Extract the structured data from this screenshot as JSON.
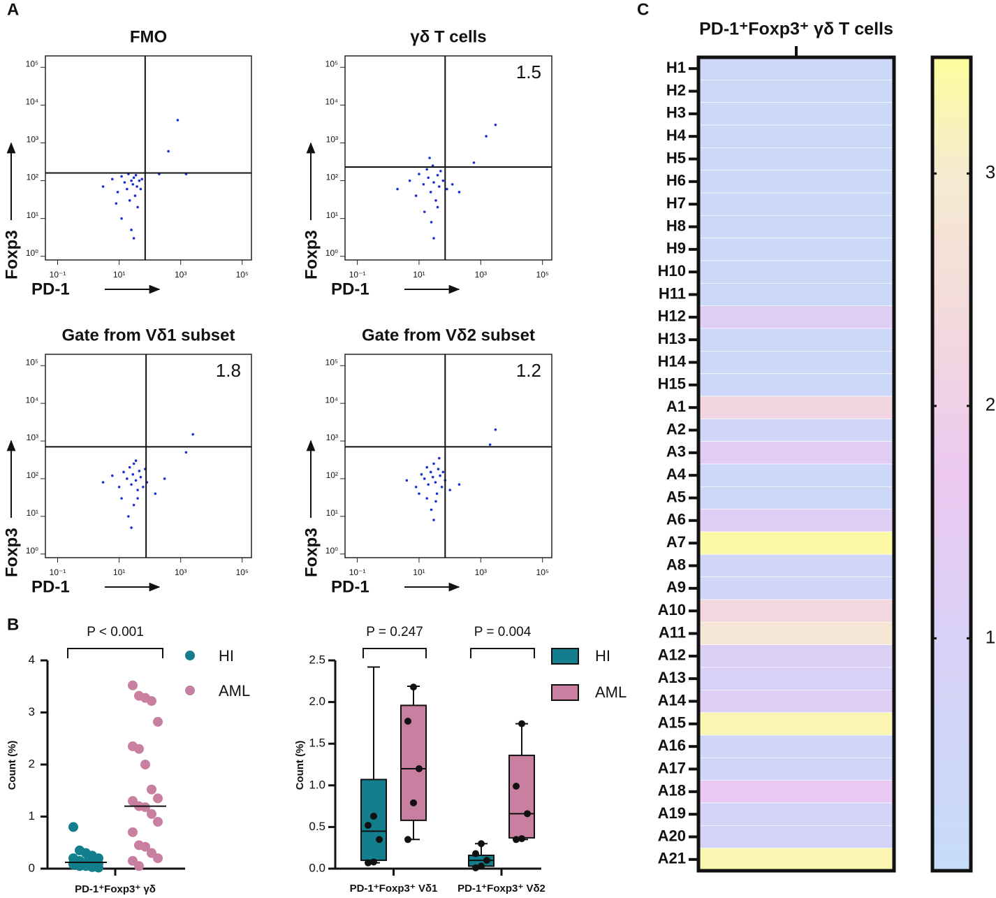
{
  "panel_labels": [
    "A",
    "B",
    "C"
  ],
  "chart_data": [
    {
      "type": "scatter",
      "title": "FMO",
      "xlabel": "PD-1",
      "ylabel": "Foxp3",
      "log_scale": true,
      "color": "#1b2fd8",
      "xlim": [
        0.04,
        200000
      ],
      "ylim": [
        0.8,
        200000
      ],
      "xticks": [
        {
          "value": 0.1,
          "label": "10⁻¹"
        },
        {
          "value": 10,
          "label": "10¹"
        },
        {
          "value": 1000,
          "label": "10³"
        },
        {
          "value": 100000,
          "label": "10⁵"
        }
      ],
      "yticks": [
        {
          "value": 1,
          "label": "10⁰"
        },
        {
          "value": 10,
          "label": "10¹"
        },
        {
          "value": 100,
          "label": "10²"
        },
        {
          "value": 1000,
          "label": "10³"
        },
        {
          "value": 10000,
          "label": "10⁴"
        },
        {
          "value": 100000,
          "label": "10⁵"
        }
      ],
      "gate_x": 70,
      "gate_y": 160,
      "x": [
        3,
        6,
        9,
        12,
        15,
        18,
        20,
        22,
        25,
        28,
        30,
        33,
        35,
        38,
        40,
        45,
        50,
        55,
        12,
        25,
        8,
        30,
        200,
        400,
        800,
        1500
      ],
      "y": [
        70,
        110,
        50,
        130,
        90,
        60,
        150,
        30,
        100,
        80,
        120,
        40,
        140,
        70,
        20,
        100,
        60,
        110,
        10,
        5,
        25,
        3,
        150,
        600,
        4000,
        150
      ]
    },
    {
      "type": "scatter",
      "title": "γδ T cells",
      "xlabel": "PD-1",
      "ylabel": "Foxp3",
      "log_scale": true,
      "color": "#1b2fd8",
      "annotation": "1.5",
      "xlim": [
        0.04,
        200000
      ],
      "ylim": [
        0.8,
        200000
      ],
      "xticks": [
        {
          "value": 0.1,
          "label": "10⁻¹"
        },
        {
          "value": 10,
          "label": "10¹"
        },
        {
          "value": 1000,
          "label": "10³"
        },
        {
          "value": 100000,
          "label": "10⁵"
        }
      ],
      "yticks": [
        {
          "value": 1,
          "label": "10⁰"
        },
        {
          "value": 10,
          "label": "10¹"
        },
        {
          "value": 100,
          "label": "10²"
        },
        {
          "value": 1000,
          "label": "10³"
        },
        {
          "value": 10000,
          "label": "10⁴"
        },
        {
          "value": 100000,
          "label": "10⁵"
        }
      ],
      "gate_x": 70,
      "gate_y": 230,
      "x": [
        2,
        5,
        8,
        10,
        14,
        18,
        20,
        24,
        28,
        30,
        35,
        40,
        45,
        50,
        60,
        80,
        120,
        200,
        25,
        15,
        30,
        40,
        600,
        1500,
        3000,
        22
      ],
      "y": [
        60,
        100,
        40,
        150,
        80,
        200,
        120,
        50,
        250,
        90,
        30,
        140,
        70,
        180,
        100,
        60,
        80,
        50,
        8,
        15,
        3,
        20,
        300,
        1500,
        3000,
        400
      ]
    },
    {
      "type": "scatter",
      "title": "Gate from Vδ1 subset",
      "xlabel": "PD-1",
      "ylabel": "Foxp3",
      "log_scale": true,
      "color": "#1b2fd8",
      "annotation": "1.8",
      "xlim": [
        0.04,
        200000
      ],
      "ylim": [
        0.8,
        200000
      ],
      "xticks": [
        {
          "value": 0.1,
          "label": "10⁻¹"
        },
        {
          "value": 10,
          "label": "10¹"
        },
        {
          "value": 1000,
          "label": "10³"
        },
        {
          "value": 100000,
          "label": "10⁵"
        }
      ],
      "yticks": [
        {
          "value": 1,
          "label": "10⁰"
        },
        {
          "value": 10,
          "label": "10¹"
        },
        {
          "value": 100,
          "label": "10²"
        },
        {
          "value": 1000,
          "label": "10³"
        },
        {
          "value": 10000,
          "label": "10⁴"
        },
        {
          "value": 100000,
          "label": "10⁵"
        }
      ],
      "gate_x": 75,
      "gate_y": 700,
      "x": [
        3,
        6,
        10,
        14,
        18,
        22,
        25,
        28,
        30,
        35,
        40,
        45,
        50,
        60,
        80,
        150,
        300,
        20,
        30,
        25,
        40,
        1500,
        2500,
        12,
        35,
        70
      ],
      "y": [
        80,
        120,
        60,
        150,
        100,
        200,
        70,
        130,
        250,
        90,
        50,
        160,
        110,
        60,
        80,
        40,
        100,
        10,
        20,
        5,
        30,
        500,
        1500,
        30,
        300,
        180
      ]
    },
    {
      "type": "scatter",
      "title": "Gate from Vδ2 subset",
      "xlabel": "PD-1",
      "ylabel": "Foxp3",
      "log_scale": true,
      "color": "#1b2fd8",
      "annotation": "1.2",
      "xlim": [
        0.04,
        200000
      ],
      "ylim": [
        0.8,
        200000
      ],
      "xticks": [
        {
          "value": 0.1,
          "label": "10⁻¹"
        },
        {
          "value": 10,
          "label": "10¹"
        },
        {
          "value": 1000,
          "label": "10³"
        },
        {
          "value": 100000,
          "label": "10⁵"
        }
      ],
      "yticks": [
        {
          "value": 1,
          "label": "10⁰"
        },
        {
          "value": 10,
          "label": "10¹"
        },
        {
          "value": 100,
          "label": "10²"
        },
        {
          "value": 1000,
          "label": "10³"
        },
        {
          "value": 10000,
          "label": "10⁴"
        },
        {
          "value": 100000,
          "label": "10⁵"
        }
      ],
      "gate_x": 70,
      "gate_y": 700,
      "x": [
        4,
        8,
        12,
        15,
        18,
        20,
        24,
        28,
        30,
        34,
        38,
        42,
        48,
        55,
        70,
        100,
        200,
        25,
        30,
        35,
        18,
        2000,
        3000,
        10,
        45,
        60
      ],
      "y": [
        90,
        60,
        130,
        100,
        200,
        70,
        150,
        110,
        250,
        80,
        40,
        180,
        120,
        60,
        90,
        50,
        70,
        15,
        8,
        25,
        30,
        800,
        2000,
        40,
        350,
        150
      ]
    },
    {
      "type": "strip",
      "ylabel": "Count (%)",
      "categories": [
        "PD-1⁺Foxp3⁺ γδ"
      ],
      "ylim": [
        0,
        4
      ],
      "yticks": [
        0,
        1,
        2,
        3,
        4
      ],
      "annotation": "P < 0.001",
      "series": [
        {
          "name": "HI",
          "color": "#137e8d",
          "median": 0.12,
          "values": [
            0.8,
            0.35,
            0.3,
            0.25,
            0.2,
            0.2,
            0.15,
            0.12,
            0.1,
            0.1,
            0.08,
            0.05,
            0.05,
            0.03,
            0.02,
            0.1
          ]
        },
        {
          "name": "AML",
          "color": "#c97fa0",
          "median": 1.2,
          "values": [
            3.52,
            3.32,
            3.28,
            3.22,
            2.82,
            2.35,
            2.3,
            2.0,
            1.52,
            1.35,
            1.3,
            1.2,
            1.18,
            1.05,
            0.9,
            0.7,
            0.45,
            0.42,
            0.3,
            0.2,
            0.15,
            0.05
          ]
        }
      ]
    },
    {
      "type": "box",
      "ylabel": "Count (%)",
      "categories": [
        "PD-1⁺Foxp3⁺ Vδ1",
        "PD-1⁺Foxp3⁺ Vδ2"
      ],
      "ylim": [
        0,
        2.5
      ],
      "yticks": [
        {
          "value": 0,
          "label": "0.0"
        },
        {
          "value": 0.5,
          "label": "0.5"
        },
        {
          "value": 1,
          "label": "1.0"
        },
        {
          "value": 1.5,
          "label": "1.5"
        },
        {
          "value": 2,
          "label": "2.0"
        },
        {
          "value": 2.5,
          "label": "2.5"
        }
      ],
      "annotations": [
        "P = 0.247",
        "P = 0.004"
      ],
      "series": [
        {
          "name": "HI",
          "color": "#137e8d",
          "boxes": [
            {
              "min": 0.07,
              "q1": 0.1,
              "median": 0.45,
              "q3": 1.07,
              "max": 2.42
            },
            {
              "min": 0,
              "q1": 0.03,
              "median": 0.1,
              "q3": 0.16,
              "max": 0.3
            }
          ],
          "points": [
            [
              0.07,
              0.08,
              0.35,
              0.52,
              0.63
            ],
            [
              0.01,
              0.03,
              0.1,
              0.18,
              0.3
            ]
          ]
        },
        {
          "name": "AML",
          "color": "#c97fa0",
          "boxes": [
            {
              "min": 0.35,
              "q1": 0.58,
              "median": 1.2,
              "q3": 1.96,
              "max": 2.19
            },
            {
              "min": 0.35,
              "q1": 0.37,
              "median": 0.66,
              "q3": 1.36,
              "max": 1.74
            }
          ],
          "points": [
            [
              0.35,
              0.79,
              1.2,
              1.77,
              2.18
            ],
            [
              0.35,
              0.36,
              0.66,
              0.99,
              1.74
            ]
          ]
        }
      ]
    },
    {
      "type": "heatmap",
      "title": "PD-1⁺Foxp3⁺ γδ T cells",
      "categories": [
        "H1",
        "H2",
        "H3",
        "H4",
        "H5",
        "H6",
        "H7",
        "H8",
        "H9",
        "H10",
        "H11",
        "H12",
        "H13",
        "H14",
        "H15",
        "A1",
        "A2",
        "A3",
        "A4",
        "A5",
        "A6",
        "A7",
        "A8",
        "A9",
        "A10",
        "A11",
        "A12",
        "A13",
        "A14",
        "A15",
        "A16",
        "A17",
        "A18",
        "A19",
        "A20",
        "A21"
      ],
      "values": [
        0.3,
        0.3,
        0.3,
        0.3,
        0.3,
        0.3,
        0.3,
        0.3,
        0.3,
        0.3,
        0.3,
        1.2,
        0.4,
        0.4,
        0.4,
        2.2,
        0.5,
        1.3,
        0.4,
        0.4,
        1.2,
        3.4,
        0.5,
        0.6,
        2.3,
        2.8,
        1.1,
        1.0,
        1.2,
        3.3,
        0.5,
        0.6,
        1.6,
        0.7,
        0.8,
        3.3
      ],
      "zlim": [
        0,
        3.5
      ],
      "zticks": [
        1,
        2,
        3
      ],
      "colorscale": [
        [
          0,
          "#c6dcf8"
        ],
        [
          1,
          "#d8d0f6"
        ],
        [
          1.7,
          "#ecc8f0"
        ],
        [
          2.3,
          "#f2d8de"
        ],
        [
          3,
          "#f6ead0"
        ],
        [
          3.5,
          "#fdfd9c"
        ]
      ]
    }
  ]
}
